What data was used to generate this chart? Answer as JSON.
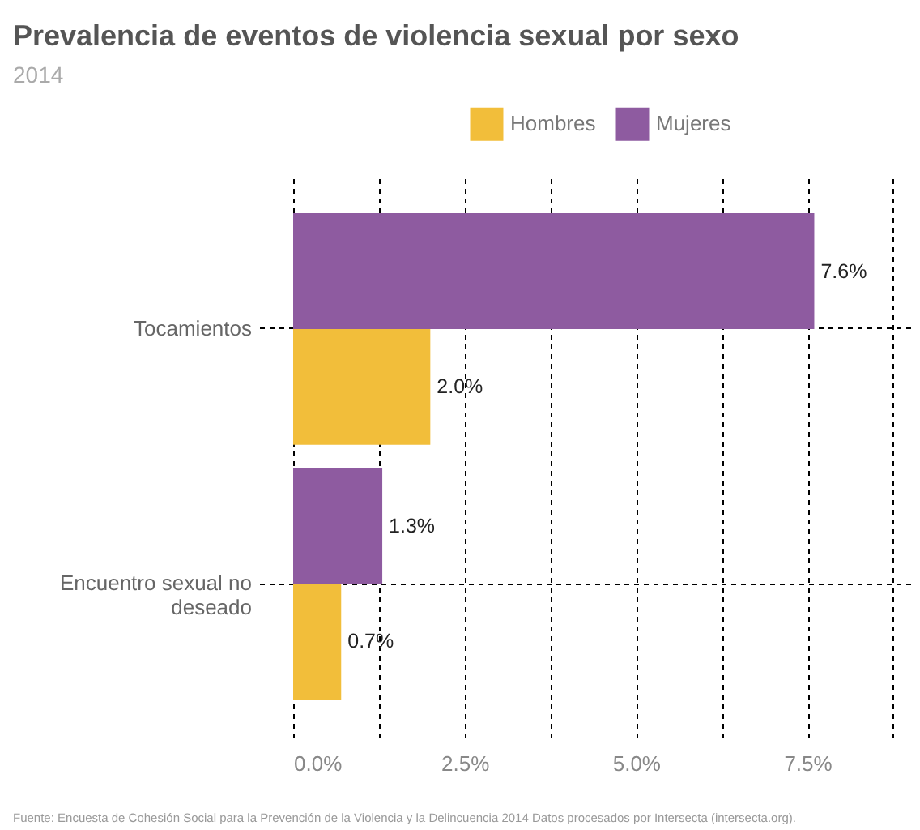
{
  "chart_data": {
    "type": "bar",
    "orientation": "horizontal",
    "title": "Prevalencia de eventos de violencia sexual por sexo",
    "subtitle": "2014",
    "categories": [
      "Tocamientos",
      "Encuentro sexual no deseado"
    ],
    "series": [
      {
        "name": "Hombres",
        "color": "#f2be3a",
        "values": [
          2.0,
          0.7
        ],
        "value_labels": [
          "2.0%",
          "0.7%"
        ]
      },
      {
        "name": "Mujeres",
        "color": "#8e5ba0",
        "values": [
          7.6,
          1.3
        ],
        "value_labels": [
          "7.6%",
          "1.3%"
        ]
      }
    ],
    "xlim": [
      0,
      9
    ],
    "xticks": [
      {
        "value": 0,
        "label": "0.0%"
      },
      {
        "value": 1.25,
        "label": null
      },
      {
        "value": 2.5,
        "label": "2.5%"
      },
      {
        "value": 3.75,
        "label": null
      },
      {
        "value": 5,
        "label": "5.0%"
      },
      {
        "value": 6.25,
        "label": null
      },
      {
        "value": 7.5,
        "label": "7.5%"
      },
      {
        "value": 8.75,
        "label": null
      }
    ],
    "grid": true,
    "legend": "top",
    "annotations": [
      "Fuente: Encuesta de Cohesión Social para la Prevención de la Violencia y la Delincuencia 2014 Datos procesados por Intersecta (intersecta.org)."
    ]
  }
}
